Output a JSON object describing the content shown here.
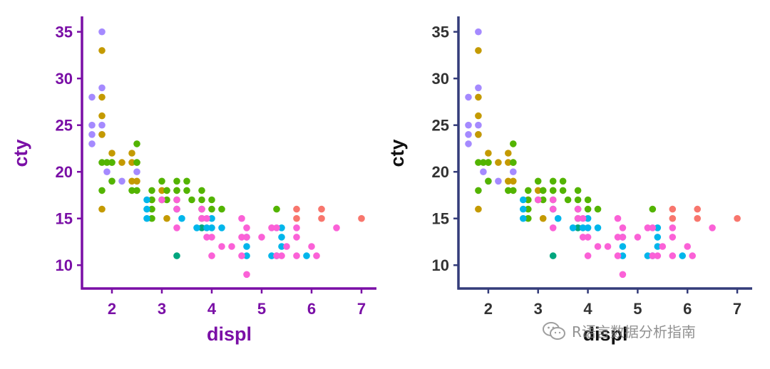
{
  "watermark": {
    "text": "R语言数据分析指南",
    "icon": "wechat-icon"
  },
  "chart_data": [
    {
      "type": "scatter",
      "xlabel": "displ",
      "ylabel": "cty",
      "xticks": [
        2,
        3,
        4,
        5,
        6,
        7
      ],
      "yticks": [
        10,
        15,
        20,
        25,
        30,
        35
      ],
      "xlim": [
        1.4,
        7.3
      ],
      "ylim": [
        7.5,
        36.5
      ],
      "grid": false,
      "colors": {
        "axis": "#7a0fa6",
        "xlabel": "#7a0fa6",
        "ylabel": "#7a0fa6",
        "ticklabels": "#7a0fa6"
      }
    },
    {
      "type": "scatter",
      "xlabel": "displ",
      "ylabel": "cty",
      "xticks": [
        2,
        3,
        4,
        5,
        6,
        7
      ],
      "yticks": [
        10,
        15,
        20,
        25,
        30,
        35
      ],
      "xlim": [
        1.4,
        7.3
      ],
      "ylim": [
        7.5,
        36.5
      ],
      "grid": false,
      "colors": {
        "axis": "#343c7a",
        "xlabel": "#111111",
        "ylabel": "#111111",
        "ticklabels": "#333333"
      }
    }
  ],
  "points": [
    {
      "x": 1.6,
      "y": 28,
      "c": "#a58aff"
    },
    {
      "x": 1.6,
      "y": 25,
      "c": "#a58aff"
    },
    {
      "x": 1.6,
      "y": 24,
      "c": "#a58aff"
    },
    {
      "x": 1.6,
      "y": 23,
      "c": "#a58aff"
    },
    {
      "x": 1.8,
      "y": 35,
      "c": "#a58aff"
    },
    {
      "x": 1.8,
      "y": 29,
      "c": "#a58aff"
    },
    {
      "x": 1.8,
      "y": 25,
      "c": "#a58aff"
    },
    {
      "x": 1.8,
      "y": 24,
      "c": "#a58aff"
    },
    {
      "x": 1.9,
      "y": 20,
      "c": "#a58aff"
    },
    {
      "x": 2.0,
      "y": 19,
      "c": "#a58aff"
    },
    {
      "x": 2.2,
      "y": 19,
      "c": "#a58aff"
    },
    {
      "x": 2.5,
      "y": 20,
      "c": "#a58aff"
    },
    {
      "x": 1.8,
      "y": 33,
      "c": "#c49a00"
    },
    {
      "x": 1.8,
      "y": 28,
      "c": "#c49a00"
    },
    {
      "x": 1.8,
      "y": 26,
      "c": "#c49a00"
    },
    {
      "x": 1.8,
      "y": 24,
      "c": "#c49a00"
    },
    {
      "x": 1.8,
      "y": 16,
      "c": "#c49a00"
    },
    {
      "x": 2.0,
      "y": 22,
      "c": "#c49a00"
    },
    {
      "x": 2.0,
      "y": 21,
      "c": "#c49a00"
    },
    {
      "x": 2.2,
      "y": 21,
      "c": "#c49a00"
    },
    {
      "x": 2.4,
      "y": 22,
      "c": "#c49a00"
    },
    {
      "x": 2.4,
      "y": 21,
      "c": "#c49a00"
    },
    {
      "x": 2.4,
      "y": 19,
      "c": "#c49a00"
    },
    {
      "x": 2.5,
      "y": 21,
      "c": "#c49a00"
    },
    {
      "x": 2.5,
      "y": 19,
      "c": "#c49a00"
    },
    {
      "x": 2.8,
      "y": 17,
      "c": "#c49a00"
    },
    {
      "x": 3.0,
      "y": 18,
      "c": "#c49a00"
    },
    {
      "x": 3.1,
      "y": 18,
      "c": "#c49a00"
    },
    {
      "x": 3.1,
      "y": 15,
      "c": "#c49a00"
    },
    {
      "x": 3.3,
      "y": 18,
      "c": "#c49a00"
    },
    {
      "x": 1.8,
      "y": 21,
      "c": "#53b400"
    },
    {
      "x": 1.8,
      "y": 18,
      "c": "#53b400"
    },
    {
      "x": 1.9,
      "y": 21,
      "c": "#53b400"
    },
    {
      "x": 2.0,
      "y": 21,
      "c": "#53b400"
    },
    {
      "x": 2.0,
      "y": 19,
      "c": "#53b400"
    },
    {
      "x": 2.4,
      "y": 18,
      "c": "#53b400"
    },
    {
      "x": 2.5,
      "y": 23,
      "c": "#53b400"
    },
    {
      "x": 2.5,
      "y": 21,
      "c": "#53b400"
    },
    {
      "x": 2.5,
      "y": 18,
      "c": "#53b400"
    },
    {
      "x": 2.8,
      "y": 18,
      "c": "#53b400"
    },
    {
      "x": 2.8,
      "y": 17,
      "c": "#53b400"
    },
    {
      "x": 2.8,
      "y": 16,
      "c": "#53b400"
    },
    {
      "x": 2.8,
      "y": 15,
      "c": "#53b400"
    },
    {
      "x": 3.0,
      "y": 19,
      "c": "#53b400"
    },
    {
      "x": 3.0,
      "y": 17,
      "c": "#53b400"
    },
    {
      "x": 3.1,
      "y": 18,
      "c": "#53b400"
    },
    {
      "x": 3.1,
      "y": 17,
      "c": "#53b400"
    },
    {
      "x": 3.3,
      "y": 19,
      "c": "#53b400"
    },
    {
      "x": 3.3,
      "y": 18,
      "c": "#53b400"
    },
    {
      "x": 3.3,
      "y": 17,
      "c": "#53b400"
    },
    {
      "x": 3.5,
      "y": 19,
      "c": "#53b400"
    },
    {
      "x": 3.5,
      "y": 18,
      "c": "#53b400"
    },
    {
      "x": 3.6,
      "y": 17,
      "c": "#53b400"
    },
    {
      "x": 3.8,
      "y": 18,
      "c": "#53b400"
    },
    {
      "x": 3.8,
      "y": 17,
      "c": "#53b400"
    },
    {
      "x": 3.8,
      "y": 16,
      "c": "#53b400"
    },
    {
      "x": 3.8,
      "y": 15,
      "c": "#53b400"
    },
    {
      "x": 4.0,
      "y": 17,
      "c": "#53b400"
    },
    {
      "x": 4.0,
      "y": 16,
      "c": "#53b400"
    },
    {
      "x": 4.2,
      "y": 16,
      "c": "#53b400"
    },
    {
      "x": 5.3,
      "y": 16,
      "c": "#53b400"
    },
    {
      "x": 3.3,
      "y": 11,
      "c": "#00a67e"
    },
    {
      "x": 3.3,
      "y": 16,
      "c": "#00a67e"
    },
    {
      "x": 3.8,
      "y": 14,
      "c": "#00a67e"
    },
    {
      "x": 2.7,
      "y": 17,
      "c": "#00b6eb"
    },
    {
      "x": 2.7,
      "y": 16,
      "c": "#00b6eb"
    },
    {
      "x": 2.7,
      "y": 15,
      "c": "#00b6eb"
    },
    {
      "x": 3.4,
      "y": 15,
      "c": "#00b6eb"
    },
    {
      "x": 3.7,
      "y": 14,
      "c": "#00b6eb"
    },
    {
      "x": 3.9,
      "y": 14,
      "c": "#00b6eb"
    },
    {
      "x": 4.0,
      "y": 15,
      "c": "#00b6eb"
    },
    {
      "x": 4.0,
      "y": 14,
      "c": "#00b6eb"
    },
    {
      "x": 4.2,
      "y": 14,
      "c": "#00b6eb"
    },
    {
      "x": 4.7,
      "y": 13,
      "c": "#00b6eb"
    },
    {
      "x": 4.7,
      "y": 12,
      "c": "#00b6eb"
    },
    {
      "x": 4.7,
      "y": 11,
      "c": "#00b6eb"
    },
    {
      "x": 5.2,
      "y": 11,
      "c": "#00b6eb"
    },
    {
      "x": 5.3,
      "y": 11,
      "c": "#00b6eb"
    },
    {
      "x": 5.4,
      "y": 14,
      "c": "#00b6eb"
    },
    {
      "x": 5.4,
      "y": 13,
      "c": "#00b6eb"
    },
    {
      "x": 5.4,
      "y": 12,
      "c": "#00b6eb"
    },
    {
      "x": 5.9,
      "y": 11,
      "c": "#00b6eb"
    },
    {
      "x": 3.0,
      "y": 17,
      "c": "#fb61d7"
    },
    {
      "x": 3.3,
      "y": 17,
      "c": "#fb61d7"
    },
    {
      "x": 3.3,
      "y": 16,
      "c": "#fb61d7"
    },
    {
      "x": 3.3,
      "y": 14,
      "c": "#fb61d7"
    },
    {
      "x": 3.8,
      "y": 16,
      "c": "#fb61d7"
    },
    {
      "x": 3.8,
      "y": 15,
      "c": "#fb61d7"
    },
    {
      "x": 3.9,
      "y": 15,
      "c": "#fb61d7"
    },
    {
      "x": 3.9,
      "y": 13,
      "c": "#fb61d7"
    },
    {
      "x": 4.0,
      "y": 13,
      "c": "#fb61d7"
    },
    {
      "x": 4.0,
      "y": 11,
      "c": "#fb61d7"
    },
    {
      "x": 4.2,
      "y": 12,
      "c": "#fb61d7"
    },
    {
      "x": 4.4,
      "y": 12,
      "c": "#fb61d7"
    },
    {
      "x": 4.6,
      "y": 15,
      "c": "#fb61d7"
    },
    {
      "x": 4.6,
      "y": 13,
      "c": "#fb61d7"
    },
    {
      "x": 4.6,
      "y": 11,
      "c": "#fb61d7"
    },
    {
      "x": 4.7,
      "y": 14,
      "c": "#fb61d7"
    },
    {
      "x": 4.7,
      "y": 13,
      "c": "#fb61d7"
    },
    {
      "x": 4.7,
      "y": 9,
      "c": "#fb61d7"
    },
    {
      "x": 5.0,
      "y": 13,
      "c": "#fb61d7"
    },
    {
      "x": 5.2,
      "y": 14,
      "c": "#fb61d7"
    },
    {
      "x": 5.3,
      "y": 14,
      "c": "#fb61d7"
    },
    {
      "x": 5.3,
      "y": 11,
      "c": "#fb61d7"
    },
    {
      "x": 5.4,
      "y": 11,
      "c": "#fb61d7"
    },
    {
      "x": 5.5,
      "y": 12,
      "c": "#fb61d7"
    },
    {
      "x": 5.7,
      "y": 14,
      "c": "#fb61d7"
    },
    {
      "x": 5.7,
      "y": 13,
      "c": "#fb61d7"
    },
    {
      "x": 5.7,
      "y": 11,
      "c": "#fb61d7"
    },
    {
      "x": 6.0,
      "y": 12,
      "c": "#fb61d7"
    },
    {
      "x": 6.1,
      "y": 11,
      "c": "#fb61d7"
    },
    {
      "x": 6.5,
      "y": 14,
      "c": "#fb61d7"
    },
    {
      "x": 5.7,
      "y": 16,
      "c": "#f8766d"
    },
    {
      "x": 5.7,
      "y": 15,
      "c": "#f8766d"
    },
    {
      "x": 6.2,
      "y": 16,
      "c": "#f8766d"
    },
    {
      "x": 6.2,
      "y": 15,
      "c": "#f8766d"
    },
    {
      "x": 7.0,
      "y": 15,
      "c": "#f8766d"
    }
  ]
}
